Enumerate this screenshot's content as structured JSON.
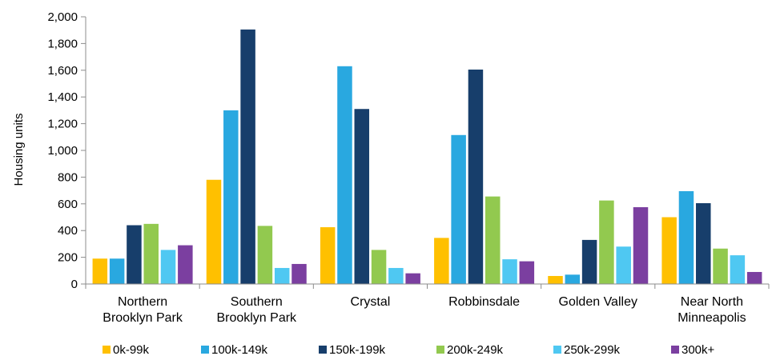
{
  "chart_data": {
    "type": "bar",
    "ylabel": "Housing units",
    "ylim": [
      0,
      2000
    ],
    "ytick_step": 200,
    "yticks": [
      "0",
      "200",
      "400",
      "600",
      "800",
      "1,000",
      "1,200",
      "1,400",
      "1,600",
      "1,800",
      "2,000"
    ],
    "categories": [
      [
        "Northern",
        "Brooklyn Park"
      ],
      [
        "Southern",
        "Brooklyn Park"
      ],
      [
        "Crystal"
      ],
      [
        "Robbinsdale"
      ],
      [
        "Golden Valley"
      ],
      [
        "Near North",
        "Minneapolis"
      ]
    ],
    "series": [
      {
        "name": "0k-99k",
        "color": "#FFC000",
        "values": [
          190,
          780,
          425,
          345,
          60,
          500
        ]
      },
      {
        "name": "100k-149k",
        "color": "#29A8E0",
        "values": [
          190,
          1300,
          1630,
          1115,
          70,
          695
        ]
      },
      {
        "name": "150k-199k",
        "color": "#173E6B",
        "values": [
          440,
          1905,
          1310,
          1605,
          330,
          605
        ]
      },
      {
        "name": "200k-249k",
        "color": "#92C94F",
        "values": [
          450,
          435,
          255,
          655,
          625,
          265
        ]
      },
      {
        "name": "250k-299k",
        "color": "#4FC8F2",
        "values": [
          255,
          120,
          120,
          185,
          280,
          215
        ]
      },
      {
        "name": "300k+",
        "color": "#7B3FA0",
        "values": [
          290,
          150,
          80,
          170,
          575,
          90
        ]
      }
    ],
    "legend_position": "bottom",
    "grid": false
  }
}
